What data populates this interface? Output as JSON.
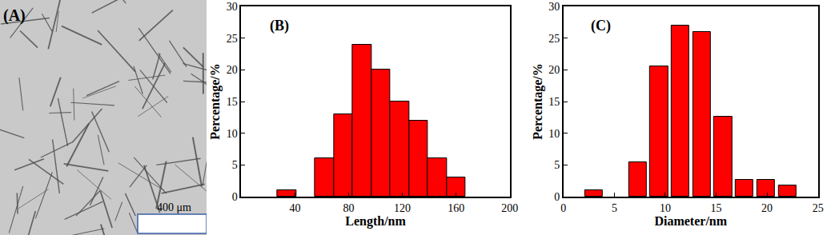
{
  "image_panel": {
    "label": "(A)",
    "scale_bar_label": "400 μm"
  },
  "chart_data": [
    {
      "type": "bar",
      "annotations": [
        "(B)"
      ],
      "x_label": "Length/nm",
      "y_label": "Percentage/%",
      "x": [
        34,
        62,
        76,
        90,
        104,
        118,
        132,
        146,
        160
      ],
      "values": [
        1,
        6,
        13,
        24,
        20,
        15,
        12,
        6,
        3
      ],
      "color": "#ff0000",
      "xlim": [
        0,
        200
      ],
      "xticks": [
        40,
        80,
        120,
        160,
        200
      ],
      "ylim": [
        0,
        30
      ],
      "yticks": [
        0,
        5,
        10,
        15,
        20,
        25,
        30
      ],
      "grid": false
    },
    {
      "type": "bar",
      "annotations": [
        "(C)"
      ],
      "x_label": "Diameter/nm",
      "y_label": "Percentage/%",
      "x": [
        3,
        7.3,
        9.4,
        11.5,
        13.6,
        15.7,
        17.8,
        19.9,
        22
      ],
      "values": [
        1,
        5.4,
        20.6,
        27,
        26,
        12.6,
        2.7,
        2.7,
        1.8
      ],
      "color": "#ff0000",
      "xlim": [
        0,
        25
      ],
      "xticks": [
        0,
        5,
        10,
        15,
        20,
        25
      ],
      "ylim": [
        0,
        30
      ],
      "yticks": [
        0,
        5,
        10,
        15,
        20,
        25,
        30
      ],
      "grid": false
    }
  ]
}
